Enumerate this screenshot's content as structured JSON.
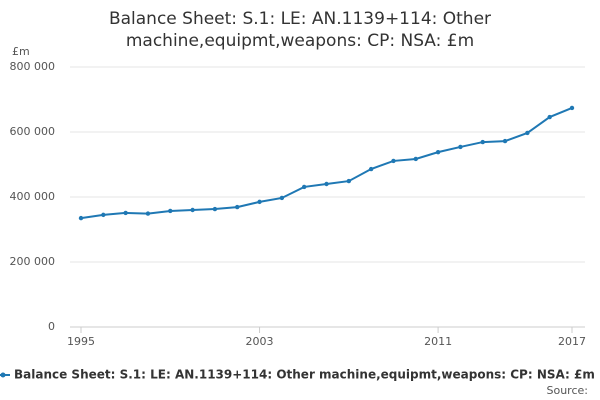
{
  "chart_data": {
    "type": "line",
    "title": "Balance Sheet: S.1: LE: AN.1139+114: Other machine,equipmt,weapons: CP: NSA: £m",
    "y_unit_label": "£m",
    "x": [
      1995,
      1996,
      1997,
      1998,
      1999,
      2000,
      2001,
      2002,
      2003,
      2004,
      2005,
      2006,
      2007,
      2008,
      2009,
      2010,
      2011,
      2012,
      2013,
      2014,
      2015,
      2016,
      2017
    ],
    "series": [
      {
        "name": "Balance Sheet: S.1: LE: AN.1139+114: Other machine,equipmt,weapons: CP: NSA: £m",
        "color": "#1f78b4",
        "values": [
          335000,
          345000,
          351000,
          349000,
          357000,
          360000,
          363000,
          369000,
          385000,
          397000,
          431000,
          440000,
          449000,
          486000,
          511000,
          517000,
          538000,
          554000,
          569000,
          572000,
          597000,
          646000,
          674000
        ]
      }
    ],
    "xlim": [
      1995,
      2017
    ],
    "xticks": [
      1995,
      2003,
      2011,
      2017
    ],
    "ylim": [
      0,
      800000
    ],
    "yticks": [
      0,
      {
        "value": 200000,
        "label": "200 000"
      },
      {
        "value": 400000,
        "label": "400 000"
      },
      {
        "value": 600000,
        "label": "600 000"
      },
      {
        "value": 800000,
        "label": "800 000"
      }
    ],
    "grid": true,
    "source": "Source:"
  }
}
